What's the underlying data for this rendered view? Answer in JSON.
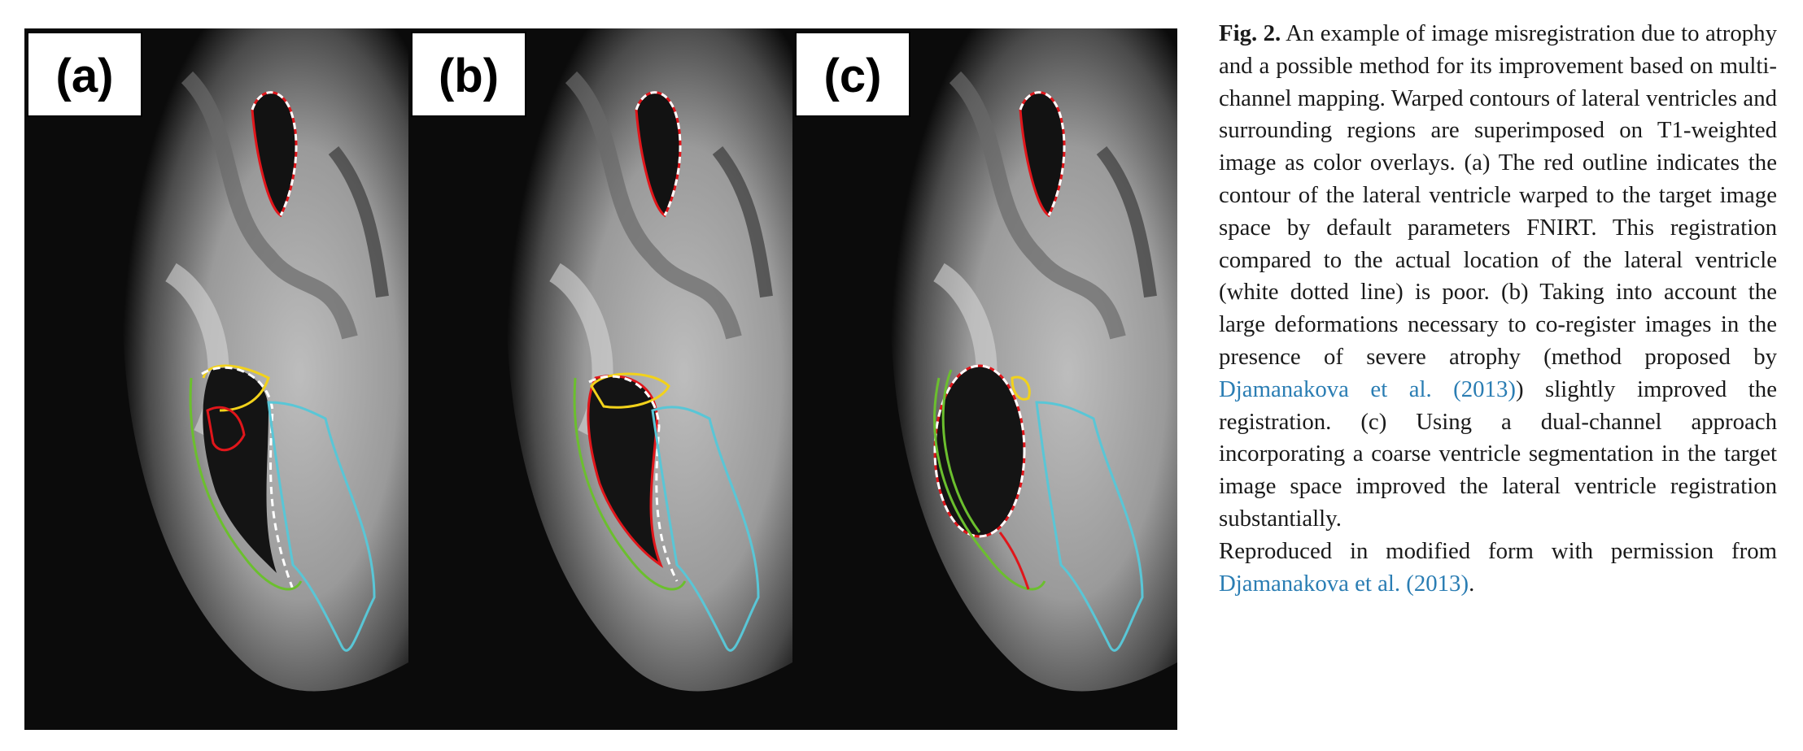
{
  "figure": {
    "panels": [
      {
        "label": "(a)"
      },
      {
        "label": "(b)"
      },
      {
        "label": "(c)"
      }
    ],
    "overlay_colors": {
      "warped_ventricle": "#e0161b",
      "actual_ventricle": "#ffffff",
      "region_yellow": "#f2d21b",
      "region_green": "#6bbf2e",
      "region_cyan": "#59c6d6"
    }
  },
  "caption": {
    "fig_label": "Fig. 2.",
    "text_1": " An example of image misregistration due to atrophy and a possible method for its improvement based on multi-channel mapping. Warped contours of lateral ventricles and surrounding regions are superimposed on T1-weighted image as color overlays. (a) The red outline indicates the contour of the lateral ventricle warped to the target image space by default parameters FNIRT. This registration compared to the actual location of the lateral ventricle (white dotted line) is poor. (b) Taking into account the large deformations necessary to co-register images in the presence of severe atrophy (method proposed by ",
    "link_1": "Djamanakova et al. (2013)",
    "text_2": ") slightly improved the registration. (c) Using a dual-channel approach incorporating a coarse ventricle segmentation in the target image space improved the lateral ventricle registration substantially.",
    "repro_text": "Reproduced in modified form with permission from ",
    "link_2": "Djamanakova et al. (2013)",
    "repro_end": "."
  }
}
